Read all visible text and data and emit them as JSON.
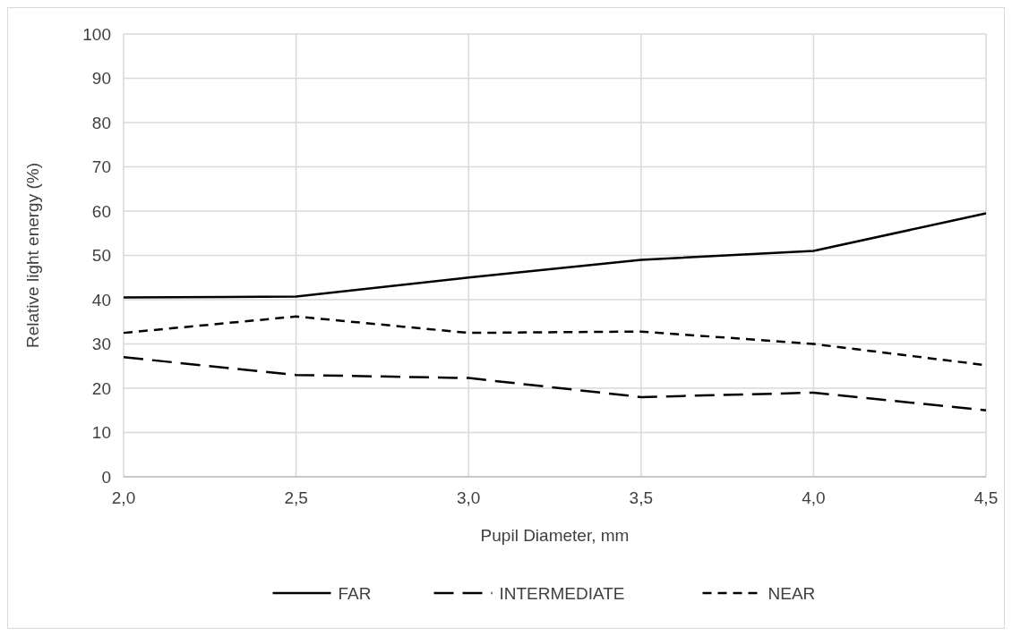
{
  "chart_data": {
    "type": "line",
    "xlabel": "Pupil Diameter, mm",
    "ylabel": "Relative light energy (%)",
    "x": [
      2.0,
      2.5,
      3.0,
      3.5,
      4.0,
      4.5
    ],
    "xlim": [
      2.0,
      4.5
    ],
    "xticks": [
      {
        "value": 2.0,
        "label": "2,0"
      },
      {
        "value": 2.5,
        "label": "2,5"
      },
      {
        "value": 3.0,
        "label": "3,0"
      },
      {
        "value": 3.5,
        "label": "3,5"
      },
      {
        "value": 4.0,
        "label": "4,0"
      },
      {
        "value": 4.5,
        "label": "4,5"
      }
    ],
    "ylim": [
      0,
      100
    ],
    "yticks": [
      0,
      10,
      20,
      30,
      40,
      50,
      60,
      70,
      80,
      90,
      100
    ],
    "grid": true,
    "legend": "bottom",
    "marker": "none",
    "series": [
      {
        "name": "FAR",
        "color": "#000000",
        "line_style": "solid",
        "values": [
          40.5,
          40.7,
          45,
          49,
          51,
          59.5
        ]
      },
      {
        "name": "INTERMEDIATE",
        "color": "#000000",
        "line_style": "dashed",
        "values": [
          27,
          23,
          22.3,
          18,
          19,
          15
        ]
      },
      {
        "name": "NEAR",
        "color": "#000000",
        "line_style": "dashed",
        "values": [
          32.5,
          36.2,
          32.5,
          32.8,
          30,
          25.2
        ]
      }
    ]
  }
}
